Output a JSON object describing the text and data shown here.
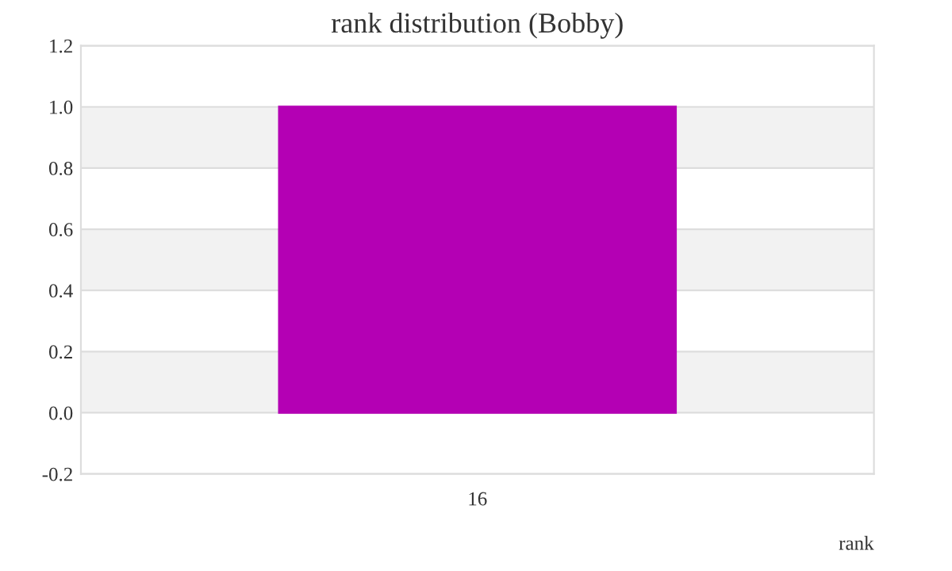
{
  "chart_data": {
    "type": "bar",
    "title": "rank distribution (Bobby)",
    "xlabel": "rank",
    "categories": [
      "16"
    ],
    "series": [
      {
        "color": "#b400b4",
        "values": [
          1.0
        ]
      }
    ],
    "ylim": [
      -0.2,
      1.2
    ],
    "yticks": [
      {
        "value": -0.2,
        "label": "-0.2"
      },
      {
        "value": 0,
        "label": "0.0"
      },
      {
        "value": 0.2,
        "label": "0.2"
      },
      {
        "value": 0.4,
        "label": "0.4"
      },
      {
        "value": 0.6,
        "label": "0.6"
      },
      {
        "value": 0.8,
        "label": "0.8"
      },
      {
        "value": 1.0,
        "label": "1.0"
      },
      {
        "value": 1.2,
        "label": "1.2"
      }
    ],
    "bands": [
      {
        "axis": "y",
        "from": 0.0,
        "to": 0.2,
        "color": "#f2f2f2"
      },
      {
        "axis": "y",
        "from": 0.4,
        "to": 0.6,
        "color": "#f2f2f2"
      },
      {
        "axis": "y",
        "from": 0.8,
        "to": 1.0,
        "color": "#f2f2f2"
      }
    ],
    "grid": "y",
    "legend": false
  }
}
